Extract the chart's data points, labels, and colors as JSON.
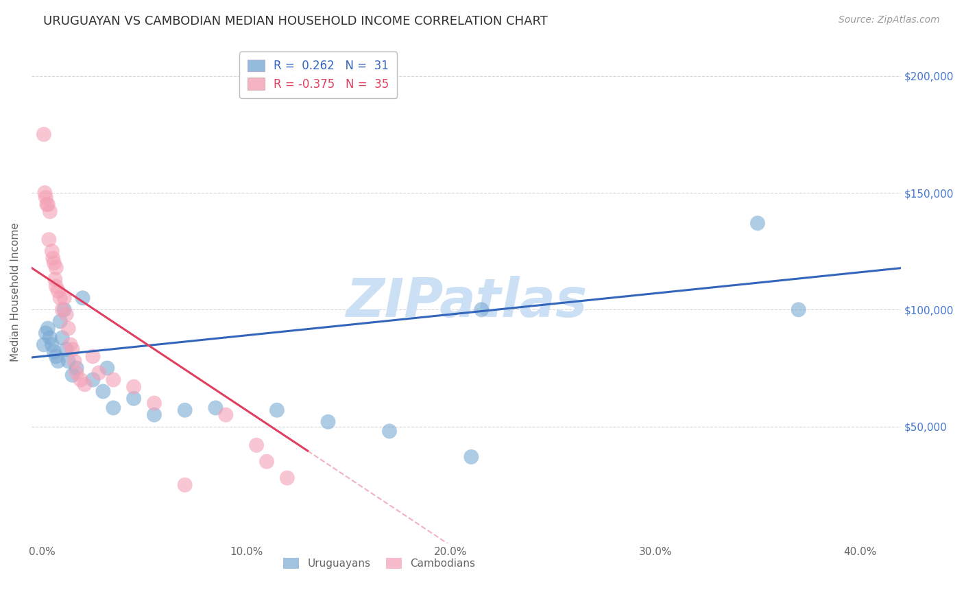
{
  "title": "URUGUAYAN VS CAMBODIAN MEDIAN HOUSEHOLD INCOME CORRELATION CHART",
  "source": "Source: ZipAtlas.com",
  "ylabel": "Median Household Income",
  "xlabel_ticks": [
    "0.0%",
    "10.0%",
    "20.0%",
    "30.0%",
    "40.0%"
  ],
  "xlabel_vals": [
    0,
    10,
    20,
    30,
    40
  ],
  "ylim": [
    0,
    215000
  ],
  "xlim": [
    -0.5,
    42
  ],
  "yticks": [
    50000,
    100000,
    150000,
    200000
  ],
  "ytick_labels": [
    "$50,000",
    "$100,000",
    "$150,000",
    "$200,000"
  ],
  "uruguayan_color": "#7baad4",
  "cambodian_color": "#f4a0b5",
  "blue_line_color": "#3366bb",
  "pink_line_color": "#e04060",
  "grid_color": "#cccccc",
  "title_color": "#333333",
  "axis_label_color": "#666666",
  "right_tick_color": "#4477cc",
  "bg_color": "#ffffff",
  "watermark": "ZIPatlas",
  "watermark_color": "#cce0f5",
  "uruguayan_x": [
    0.1,
    0.2,
    0.3,
    0.4,
    0.5,
    0.6,
    0.7,
    0.8,
    0.9,
    1.0,
    1.1,
    1.2,
    1.3,
    1.5,
    1.7,
    2.0,
    2.5,
    3.0,
    3.2,
    3.5,
    4.5,
    5.5,
    7.0,
    8.5,
    11.5,
    14.0,
    17.0,
    21.0,
    21.5,
    35.0,
    37.0
  ],
  "uruguayan_y": [
    85000,
    90000,
    92000,
    88000,
    85000,
    82000,
    80000,
    78000,
    95000,
    88000,
    100000,
    83000,
    78000,
    72000,
    75000,
    105000,
    70000,
    65000,
    75000,
    58000,
    62000,
    55000,
    57000,
    58000,
    57000,
    52000,
    48000,
    37000,
    100000,
    137000,
    100000
  ],
  "cambodian_x": [
    0.1,
    0.2,
    0.3,
    0.4,
    0.5,
    0.6,
    0.7,
    0.7,
    0.8,
    0.9,
    1.0,
    1.1,
    1.2,
    1.3,
    1.4,
    1.5,
    1.6,
    1.7,
    1.9,
    2.1,
    2.5,
    2.8,
    3.5,
    4.5,
    5.5,
    7.0,
    9.0,
    10.5,
    11.0,
    12.0,
    0.15,
    0.25,
    0.35,
    0.55,
    0.65
  ],
  "cambodian_y": [
    175000,
    148000,
    145000,
    142000,
    125000,
    120000,
    118000,
    110000,
    108000,
    105000,
    100000,
    105000,
    98000,
    92000,
    85000,
    83000,
    78000,
    73000,
    70000,
    68000,
    80000,
    73000,
    70000,
    67000,
    60000,
    25000,
    55000,
    42000,
    35000,
    28000,
    150000,
    145000,
    130000,
    122000,
    113000
  ],
  "blue_intercept": 80000,
  "blue_slope": 900,
  "pink_intercept": 115000,
  "pink_slope": -5800
}
